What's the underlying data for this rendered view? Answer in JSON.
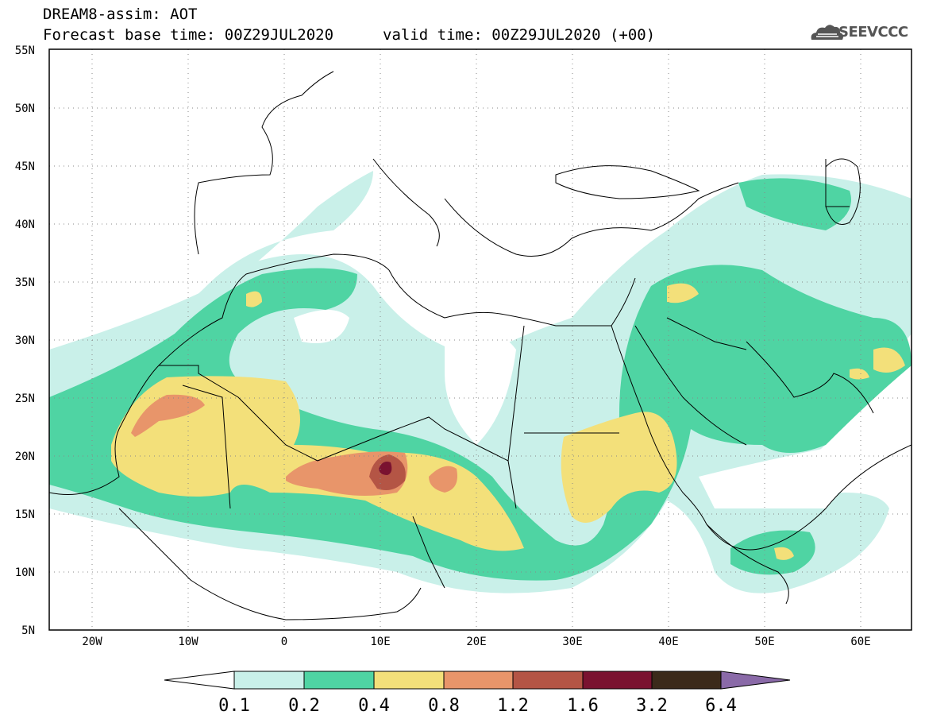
{
  "header": {
    "title": "DREAM8-assim: AOT",
    "base_time": "Forecast base time: 00Z29JUL2020",
    "valid_time": "valid time: 00Z29JUL2020 (+00)"
  },
  "logo": {
    "text": "SEEVCCC",
    "icon": "cloud-icon"
  },
  "map": {
    "lat_labels": [
      "55N",
      "50N",
      "45N",
      "40N",
      "35N",
      "30N",
      "25N",
      "20N",
      "15N",
      "10N",
      "5N"
    ],
    "lon_labels": [
      "20W",
      "10W",
      "0",
      "10E",
      "20E",
      "30E",
      "40E",
      "50E",
      "60E"
    ]
  },
  "colorbar": {
    "labels": [
      "0.1",
      "0.2",
      "0.4",
      "0.8",
      "1.2",
      "1.6",
      "3.2",
      "6.4"
    ],
    "colors": [
      "#c9f0e9",
      "#4fd4a3",
      "#f3e07a",
      "#e8956a",
      "#b45545",
      "#7a1230",
      "#3b2a1a",
      "#8a6aa8"
    ]
  }
}
